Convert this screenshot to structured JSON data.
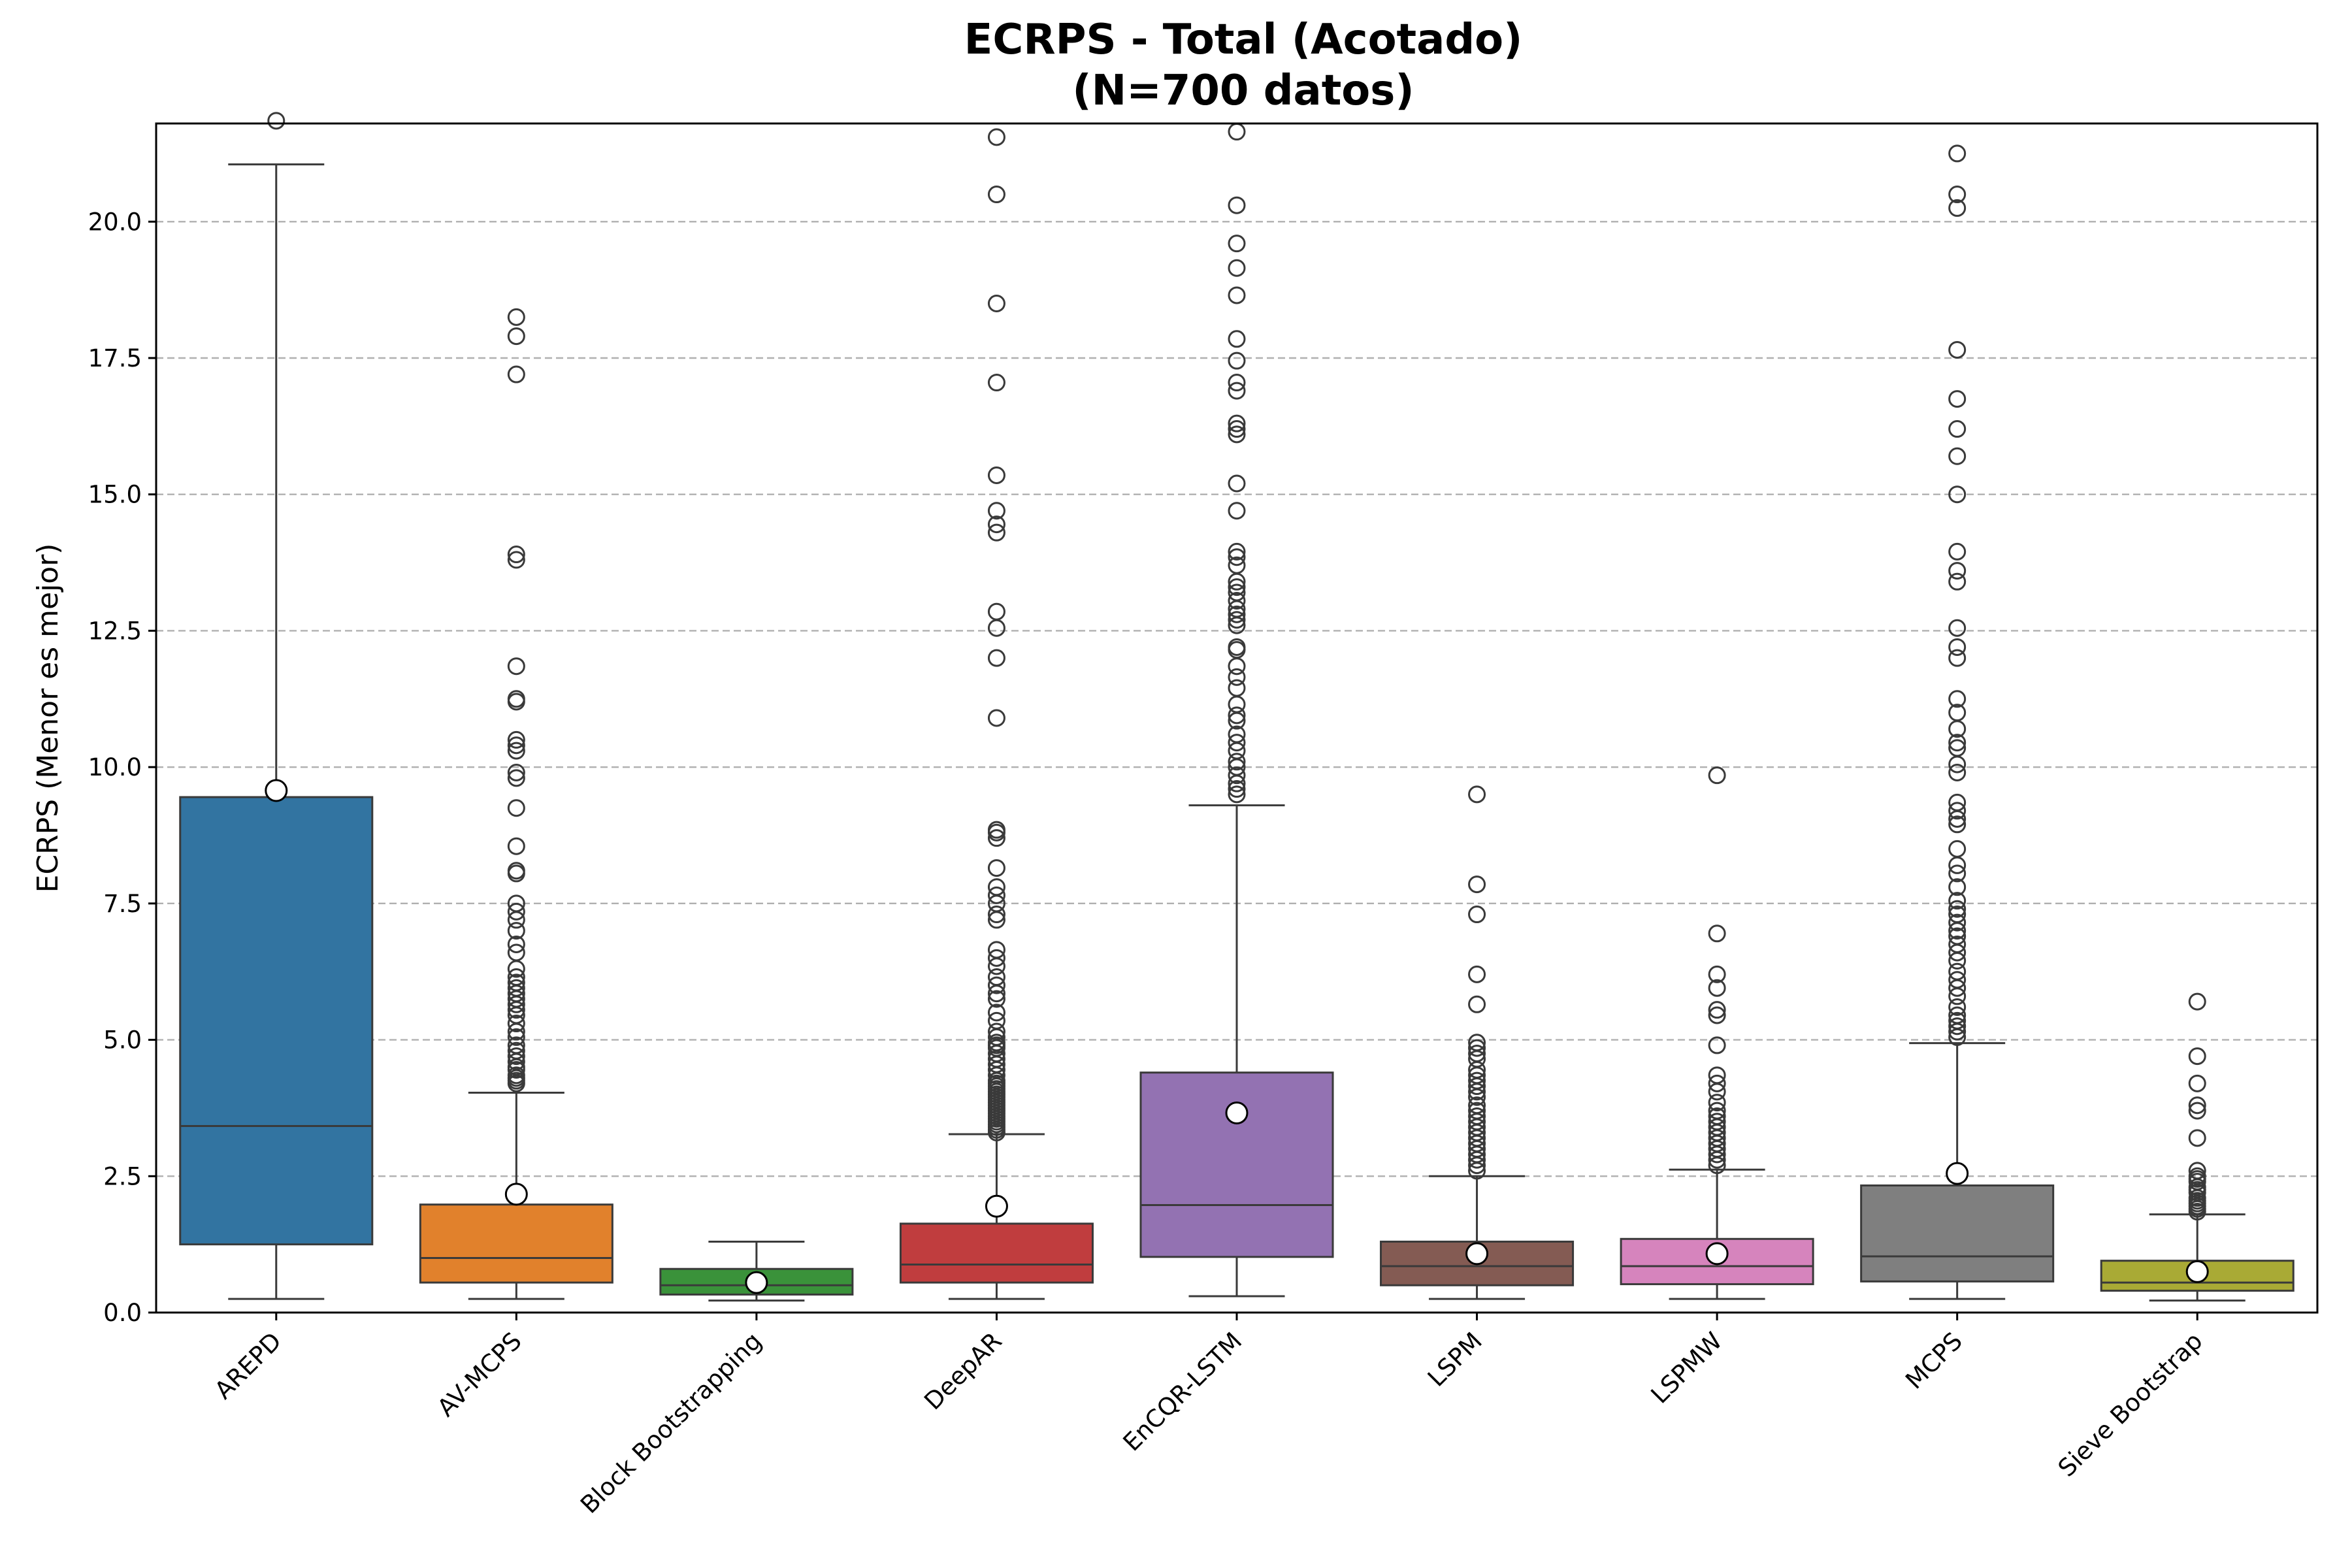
{
  "chart_data": {
    "type": "box",
    "title_line1": "ECRPS - Total (Acotado)",
    "title_line2": "(N=700 datos)",
    "xlabel": "",
    "ylabel": "ECRPS (Menor es mejor)",
    "ylim": [
      0,
      21.8
    ],
    "yticks": [
      0.0,
      2.5,
      5.0,
      7.5,
      10.0,
      12.5,
      15.0,
      17.5,
      20.0
    ],
    "ytick_labels": [
      "0.0",
      "2.5",
      "5.0",
      "7.5",
      "10.0",
      "12.5",
      "15.0",
      "17.5",
      "20.0"
    ],
    "grid": "horizontal dashed",
    "categories": [
      "AREPD",
      "AV-MCPS",
      "Block Bootstrapping",
      "DeepAR",
      "EnCQR-LSTM",
      "LSPM",
      "LSPMW",
      "MCPS",
      "Sieve Bootstrap"
    ],
    "colors": [
      "#3274a1",
      "#e1812c",
      "#3a923a",
      "#c03d3e",
      "#9372b2",
      "#845b53",
      "#d684bd",
      "#7f7f7f",
      "#a9aa35"
    ],
    "boxes": [
      {
        "whislo": 0.25,
        "q1": 1.25,
        "median": 3.42,
        "q3": 9.45,
        "whishi": 21.05,
        "mean": 9.57,
        "fliers": [
          21.85
        ]
      },
      {
        "whislo": 0.25,
        "q1": 0.55,
        "median": 1.0,
        "q3": 1.98,
        "whishi": 4.03,
        "mean": 2.17,
        "fliers": [
          4.2,
          4.25,
          4.3,
          4.35,
          4.45,
          4.5,
          4.6,
          4.7,
          4.8,
          4.9,
          5.05,
          5.15,
          5.3,
          5.45,
          5.55,
          5.65,
          5.75,
          5.85,
          5.95,
          6.05,
          6.15,
          6.3,
          6.6,
          6.75,
          7.0,
          7.2,
          7.35,
          7.5,
          8.05,
          8.1,
          8.55,
          9.25,
          9.8,
          9.9,
          10.3,
          10.4,
          10.5,
          11.2,
          11.25,
          11.85,
          13.8,
          13.9,
          17.2,
          17.9,
          18.25
        ]
      },
      {
        "whislo": 0.22,
        "q1": 0.33,
        "median": 0.5,
        "q3": 0.8,
        "whishi": 1.3,
        "mean": 0.55,
        "fliers": []
      },
      {
        "whislo": 0.25,
        "q1": 0.55,
        "median": 0.88,
        "q3": 1.63,
        "whishi": 3.27,
        "mean": 1.95,
        "fliers": [
          3.3,
          3.35,
          3.4,
          3.45,
          3.5,
          3.55,
          3.6,
          3.65,
          3.7,
          3.75,
          3.8,
          3.85,
          3.9,
          3.95,
          4.0,
          4.05,
          4.1,
          4.15,
          4.2,
          4.25,
          4.35,
          4.45,
          4.55,
          4.65,
          4.75,
          4.85,
          4.9,
          4.95,
          5.05,
          5.15,
          5.35,
          5.5,
          5.75,
          5.85,
          6.0,
          6.15,
          6.35,
          6.5,
          6.65,
          7.2,
          7.3,
          7.5,
          7.65,
          7.8,
          8.15,
          8.7,
          8.8,
          8.85,
          10.9,
          12.0,
          12.55,
          12.85,
          14.3,
          14.45,
          14.7,
          15.35,
          17.05,
          18.5,
          20.5,
          21.55
        ]
      },
      {
        "whislo": 0.3,
        "q1": 1.02,
        "median": 1.97,
        "q3": 4.4,
        "whishi": 9.3,
        "mean": 3.66,
        "fliers": [
          9.5,
          9.6,
          9.7,
          9.85,
          10.0,
          10.1,
          10.3,
          10.45,
          10.6,
          10.85,
          10.95,
          11.15,
          11.45,
          11.65,
          11.85,
          12.15,
          12.2,
          12.6,
          12.7,
          12.8,
          12.9,
          13.05,
          13.2,
          13.3,
          13.4,
          13.7,
          13.85,
          13.95,
          14.7,
          15.2,
          16.1,
          16.2,
          16.3,
          16.9,
          17.05,
          17.45,
          17.85,
          18.65,
          19.15,
          19.6,
          20.3,
          21.65
        ]
      },
      {
        "whislo": 0.25,
        "q1": 0.5,
        "median": 0.85,
        "q3": 1.3,
        "whishi": 2.5,
        "mean": 1.08,
        "fliers": [
          2.6,
          2.7,
          2.8,
          2.9,
          3.0,
          3.1,
          3.2,
          3.3,
          3.4,
          3.5,
          3.6,
          3.7,
          3.8,
          3.95,
          4.05,
          4.15,
          4.25,
          4.35,
          4.45,
          4.65,
          4.75,
          4.85,
          4.95,
          5.65,
          6.2,
          7.3,
          7.85,
          9.5
        ]
      },
      {
        "whislo": 0.25,
        "q1": 0.52,
        "median": 0.85,
        "q3": 1.35,
        "whishi": 2.62,
        "mean": 1.08,
        "fliers": [
          2.7,
          2.8,
          2.9,
          3.0,
          3.1,
          3.2,
          3.3,
          3.4,
          3.5,
          3.6,
          3.7,
          3.85,
          4.05,
          4.2,
          4.35,
          4.9,
          5.45,
          5.55,
          5.95,
          6.2,
          6.95,
          9.85
        ]
      },
      {
        "whislo": 0.25,
        "q1": 0.57,
        "median": 1.03,
        "q3": 2.33,
        "whishi": 4.94,
        "mean": 2.55,
        "fliers": [
          5.05,
          5.15,
          5.25,
          5.35,
          5.45,
          5.6,
          5.8,
          5.95,
          6.1,
          6.25,
          6.45,
          6.6,
          6.75,
          6.9,
          7.0,
          7.15,
          7.3,
          7.4,
          7.55,
          7.8,
          8.05,
          8.2,
          8.5,
          8.95,
          9.05,
          9.2,
          9.35,
          9.9,
          10.05,
          10.35,
          10.45,
          10.7,
          11.0,
          11.25,
          12.0,
          12.2,
          12.55,
          13.4,
          13.6,
          13.95,
          15.0,
          15.7,
          16.2,
          16.75,
          17.65,
          20.25,
          20.5,
          21.25
        ]
      },
      {
        "whislo": 0.22,
        "q1": 0.4,
        "median": 0.55,
        "q3": 0.95,
        "whishi": 1.8,
        "mean": 0.75,
        "fliers": [
          1.85,
          1.9,
          1.95,
          2.0,
          2.05,
          2.1,
          2.2,
          2.25,
          2.3,
          2.4,
          2.45,
          2.5,
          2.6,
          3.2,
          3.7,
          3.8,
          4.2,
          4.7,
          5.7
        ]
      }
    ]
  }
}
